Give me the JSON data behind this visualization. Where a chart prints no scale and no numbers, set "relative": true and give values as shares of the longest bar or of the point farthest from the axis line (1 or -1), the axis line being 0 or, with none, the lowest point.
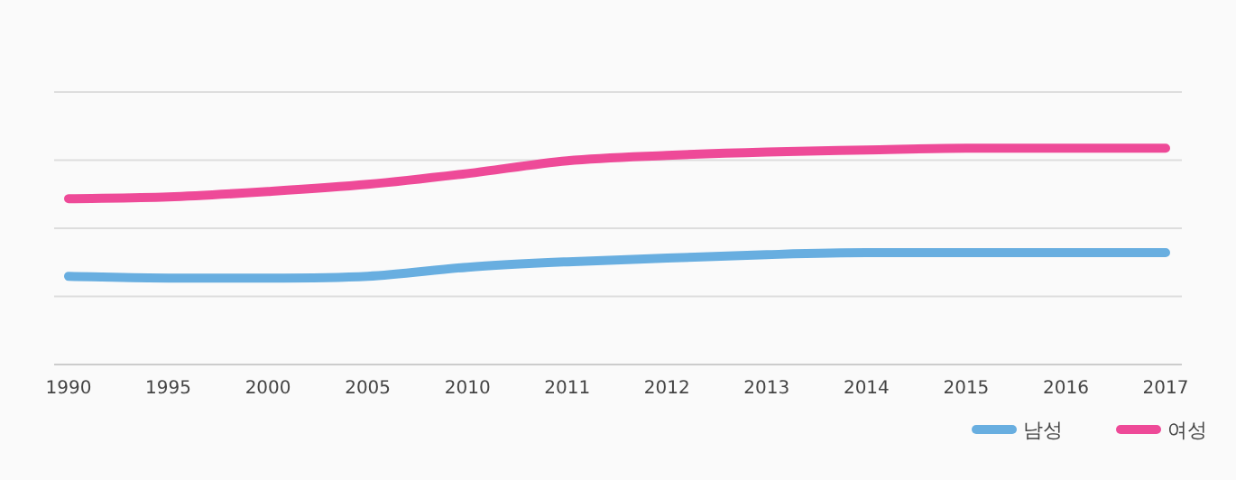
{
  "chart_data": {
    "type": "line",
    "relative": true,
    "grid": true,
    "legend": "bottom right",
    "marker": "none",
    "line_style": "solid",
    "categories": [
      "1990",
      "1995",
      "2000",
      "2005",
      "2010",
      "2011",
      "2012",
      "2013",
      "2014",
      "2015",
      "2016",
      "2017"
    ],
    "series": [
      {
        "name": "남성",
        "color": "#68aee0",
        "values": [
          0.408,
          0.4,
          0.4,
          0.408,
          0.45,
          0.475,
          0.492,
          0.508,
          0.517,
          0.517,
          0.517,
          0.517
        ]
      },
      {
        "name": "여성",
        "color": "#ee4a98",
        "values": [
          0.767,
          0.775,
          0.8,
          0.833,
          0.883,
          0.942,
          0.967,
          0.983,
          0.992,
          1,
          1,
          1
        ]
      }
    ]
  }
}
